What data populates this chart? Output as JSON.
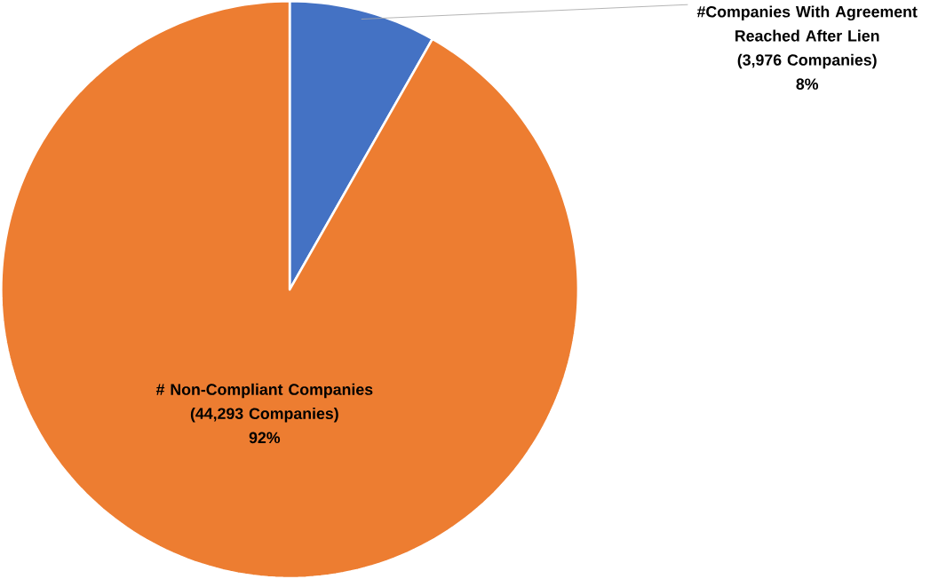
{
  "chart_data": {
    "type": "pie",
    "categories": [
      "#Companies With Agreement Reached After Lien",
      "# Non-Compliant Companies"
    ],
    "values": [
      3976,
      44293
    ],
    "colors": [
      "#4472c4",
      "#ed7d31"
    ],
    "value_labels": [
      "(3,976 Companies)",
      "(44,293 Companies)"
    ],
    "annotations": [
      "8%",
      "92%"
    ]
  }
}
